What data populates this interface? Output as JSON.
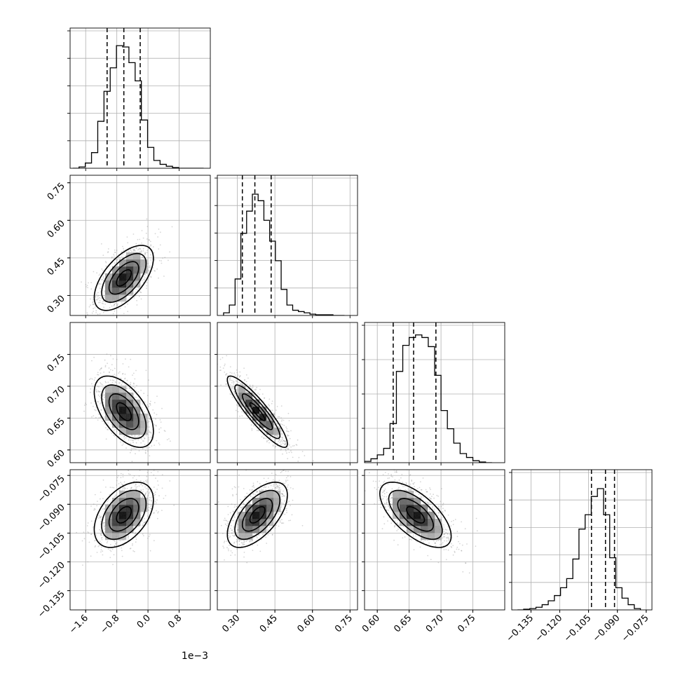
{
  "chart_data": {
    "type": "corner",
    "n_params": 4,
    "x_offset_label": "1e−3",
    "param_ranges": [
      [
        -2.0,
        1.6
      ],
      [
        0.22,
        0.78
      ],
      [
        0.58,
        0.8
      ],
      [
        -0.145,
        -0.072
      ]
    ],
    "ticks": [
      {
        "values": [
          -1.6,
          -0.8,
          0.0,
          0.8
        ],
        "labels": [
          "−1.6",
          "−0.8",
          "0.0",
          "0.8"
        ]
      },
      {
        "values": [
          0.3,
          0.45,
          0.6,
          0.75
        ],
        "labels": [
          "0.30",
          "0.45",
          "0.60",
          "0.75"
        ]
      },
      {
        "values": [
          0.6,
          0.65,
          0.7,
          0.75
        ],
        "labels": [
          "0.60",
          "0.65",
          "0.70",
          "0.75"
        ]
      },
      {
        "values": [
          -0.135,
          -0.12,
          -0.105,
          -0.09,
          -0.075
        ],
        "labels": [
          "−0.135",
          "−0.120",
          "−0.105",
          "−0.090",
          "−0.075"
        ]
      }
    ],
    "hist_yticks": [
      [
        0.2,
        0.4,
        0.6,
        0.8,
        1.0
      ],
      [
        0.2,
        0.4,
        0.6,
        0.8,
        1.0
      ],
      [
        0.25,
        0.5,
        0.75,
        1.0
      ],
      [
        0.2,
        0.4,
        0.6,
        0.8,
        1.0
      ]
    ],
    "histograms": [
      {
        "bins": [
          -1.93,
          -1.77,
          -1.61,
          -1.45,
          -1.29,
          -1.13,
          -0.97,
          -0.81,
          -0.65,
          -0.49,
          -0.33,
          -0.17,
          -0.01,
          0.15,
          0.31,
          0.47,
          0.63,
          0.79,
          0.95,
          1.11,
          1.27,
          1.43
        ],
        "counts": [
          0.0,
          0.01,
          0.04,
          0.12,
          0.36,
          0.59,
          0.77,
          0.94,
          0.93,
          0.81,
          0.67,
          0.37,
          0.16,
          0.06,
          0.03,
          0.015,
          0.005,
          0.0,
          0.0,
          0.0,
          0.0
        ],
        "quantiles": [
          -1.05,
          -0.62,
          -0.2
        ]
      },
      {
        "bins": [
          0.245,
          0.268,
          0.291,
          0.314,
          0.337,
          0.36,
          0.383,
          0.406,
          0.429,
          0.452,
          0.475,
          0.498,
          0.521,
          0.544,
          0.567,
          0.59,
          0.613,
          0.636,
          0.659,
          0.682,
          0.705,
          0.728
        ],
        "counts": [
          0.02,
          0.08,
          0.28,
          0.63,
          0.8,
          0.93,
          0.88,
          0.73,
          0.57,
          0.42,
          0.2,
          0.08,
          0.04,
          0.03,
          0.02,
          0.01,
          0.005,
          0.005,
          0.005,
          0.0,
          0.0
        ],
        "quantiles": [
          0.32,
          0.37,
          0.435
        ]
      },
      {
        "bins": [
          0.58,
          0.59,
          0.6,
          0.61,
          0.62,
          0.63,
          0.64,
          0.65,
          0.66,
          0.67,
          0.68,
          0.69,
          0.7,
          0.71,
          0.72,
          0.73,
          0.74,
          0.75,
          0.76,
          0.77,
          0.78
        ],
        "counts": [
          0.01,
          0.03,
          0.06,
          0.11,
          0.3,
          0.7,
          0.9,
          0.96,
          0.98,
          0.96,
          0.89,
          0.67,
          0.4,
          0.26,
          0.15,
          0.07,
          0.04,
          0.015,
          0.005,
          0.0
        ],
        "quantiles": [
          0.625,
          0.657,
          0.692
        ]
      },
      {
        "bins": [
          -0.142,
          -0.1388,
          -0.1356,
          -0.1324,
          -0.1292,
          -0.126,
          -0.1228,
          -0.1196,
          -0.1164,
          -0.1132,
          -0.11,
          -0.1068,
          -0.1036,
          -0.1004,
          -0.0972,
          -0.094,
          -0.0908,
          -0.0876,
          -0.0844,
          -0.0812,
          -0.078
        ],
        "counts": [
          0.0,
          0.005,
          0.01,
          0.02,
          0.04,
          0.07,
          0.11,
          0.17,
          0.24,
          0.39,
          0.62,
          0.73,
          0.87,
          0.93,
          0.73,
          0.4,
          0.17,
          0.09,
          0.04,
          0.01
        ],
        "quantiles": [
          -0.1035,
          -0.0962,
          -0.0915
        ]
      }
    ],
    "joint": [
      {
        "i": 1,
        "j": 0,
        "mean": [
          -0.62,
          0.37
        ],
        "sd": [
          0.38,
          0.065
        ],
        "rho": 0.6
      },
      {
        "i": 2,
        "j": 0,
        "mean": [
          -0.62,
          0.66
        ],
        "sd": [
          0.38,
          0.028
        ],
        "rho": -0.55
      },
      {
        "i": 2,
        "j": 1,
        "mean": [
          0.38,
          0.66
        ],
        "sd": [
          0.06,
          0.028
        ],
        "rho": -0.9
      },
      {
        "i": 3,
        "j": 0,
        "mean": [
          -0.62,
          -0.0955
        ],
        "sd": [
          0.38,
          0.0085
        ],
        "rho": 0.45
      },
      {
        "i": 3,
        "j": 1,
        "mean": [
          0.38,
          -0.0955
        ],
        "sd": [
          0.06,
          0.0085
        ],
        "rho": 0.6
      },
      {
        "i": 3,
        "j": 2,
        "mean": [
          0.66,
          -0.0955
        ],
        "sd": [
          0.028,
          0.0085
        ],
        "rho": -0.65
      }
    ],
    "contour_levels_sigma": [
      0.5,
      1.0,
      1.5,
      2.0
    ]
  }
}
